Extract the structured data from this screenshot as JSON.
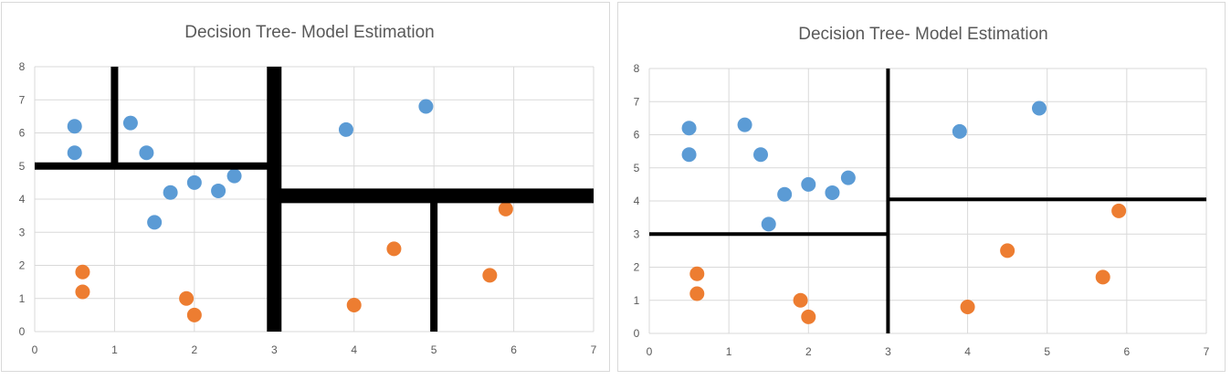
{
  "colors": {
    "series_1": "#5b9bd5",
    "series_2": "#ed7d31",
    "split": "#000000",
    "grid": "#d9d9d9",
    "text": "#595959"
  },
  "chart_data": [
    {
      "type": "scatter",
      "title": "Decision Tree- Model Estimation",
      "xlabel": "",
      "ylabel": "",
      "xlim": [
        0,
        7
      ],
      "ylim": [
        0,
        8
      ],
      "xticks": [
        "0",
        "1",
        "2",
        "3",
        "4",
        "5",
        "6",
        "7"
      ],
      "yticks": [
        "0",
        "1",
        "2",
        "3",
        "4",
        "5",
        "6",
        "7",
        "8"
      ],
      "grid": true,
      "series": [
        {
          "color": "#5b9bd5",
          "x": [
            0.5,
            0.5,
            1.2,
            1.4,
            1.5,
            1.7,
            2.0,
            2.3,
            2.5,
            3.9,
            4.9
          ],
          "y": [
            6.2,
            5.4,
            6.3,
            5.4,
            3.3,
            4.2,
            4.5,
            4.25,
            4.7,
            6.1,
            6.8
          ]
        },
        {
          "color": "#ed7d31",
          "x": [
            0.6,
            0.6,
            1.9,
            2.0,
            4.0,
            4.5,
            5.7,
            5.9
          ],
          "y": [
            1.8,
            1.2,
            1.0,
            0.5,
            0.8,
            2.5,
            1.7,
            3.7
          ]
        }
      ],
      "splits": [
        {
          "orientation": "vertical",
          "at": 3,
          "from": 0,
          "to": 8,
          "weight": "heavy"
        },
        {
          "orientation": "horizontal",
          "at": 4.1,
          "from": 3,
          "to": 7,
          "weight": "heavy"
        },
        {
          "orientation": "horizontal",
          "at": 5,
          "from": 0,
          "to": 3,
          "weight": "medium"
        },
        {
          "orientation": "vertical",
          "at": 1,
          "from": 5,
          "to": 8,
          "weight": "medium"
        },
        {
          "orientation": "vertical",
          "at": 5,
          "from": 0,
          "to": 4.1,
          "weight": "medium"
        }
      ]
    },
    {
      "type": "scatter",
      "title": "Decision Tree- Model Estimation",
      "xlabel": "",
      "ylabel": "",
      "xlim": [
        0,
        7
      ],
      "ylim": [
        0,
        8
      ],
      "xticks": [
        "0",
        "1",
        "2",
        "3",
        "4",
        "5",
        "6",
        "7"
      ],
      "yticks": [
        "0",
        "1",
        "2",
        "3",
        "4",
        "5",
        "6",
        "7",
        "8"
      ],
      "grid": true,
      "series": [
        {
          "color": "#5b9bd5",
          "x": [
            0.5,
            0.5,
            1.2,
            1.4,
            1.5,
            1.7,
            2.0,
            2.3,
            2.5,
            3.9,
            4.9
          ],
          "y": [
            6.2,
            5.4,
            6.3,
            5.4,
            3.3,
            4.2,
            4.5,
            4.25,
            4.7,
            6.1,
            6.8
          ]
        },
        {
          "color": "#ed7d31",
          "x": [
            0.6,
            0.6,
            1.9,
            2.0,
            4.0,
            4.5,
            5.7,
            5.9
          ],
          "y": [
            1.8,
            1.2,
            1.0,
            0.5,
            0.8,
            2.5,
            1.7,
            3.7
          ]
        }
      ],
      "splits": [
        {
          "orientation": "vertical",
          "at": 3,
          "from": 0,
          "to": 8,
          "weight": "thin"
        },
        {
          "orientation": "horizontal",
          "at": 3,
          "from": 0,
          "to": 3,
          "weight": "thin"
        },
        {
          "orientation": "horizontal",
          "at": 4.05,
          "from": 3,
          "to": 7,
          "weight": "thin"
        }
      ]
    }
  ]
}
